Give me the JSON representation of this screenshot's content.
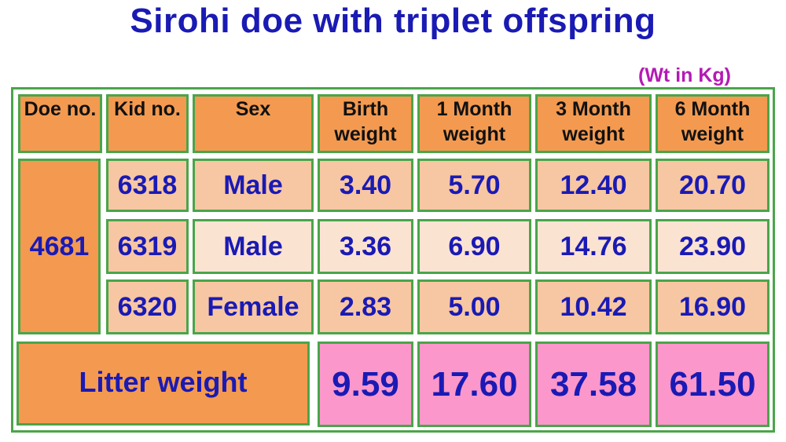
{
  "title": "Sirohi doe with triplet offspring",
  "units_note": "(Wt in Kg)",
  "headers": {
    "doe_no": "Doe no.",
    "kid_no": "Kid no.",
    "sex": "Sex",
    "birth": "Birth weight",
    "m1": "1 Month weight",
    "m3": "3 Month weight",
    "m6": "6 Month weight"
  },
  "doe": "4681",
  "rows": [
    {
      "kid": "6318",
      "sex": "Male",
      "birth": "3.40",
      "m1": "5.70",
      "m3": "12.40",
      "m6": "20.70"
    },
    {
      "kid": "6319",
      "sex": "Male",
      "birth": "3.36",
      "m1": "6.90",
      "m3": "14.76",
      "m6": "23.90"
    },
    {
      "kid": "6320",
      "sex": "Female",
      "birth": "2.83",
      "m1": "5.00",
      "m3": "10.42",
      "m6": "16.90"
    }
  ],
  "litter": {
    "label": "Litter weight",
    "birth": "9.59",
    "m1": "17.60",
    "m3": "37.58",
    "m6": "61.50"
  }
}
